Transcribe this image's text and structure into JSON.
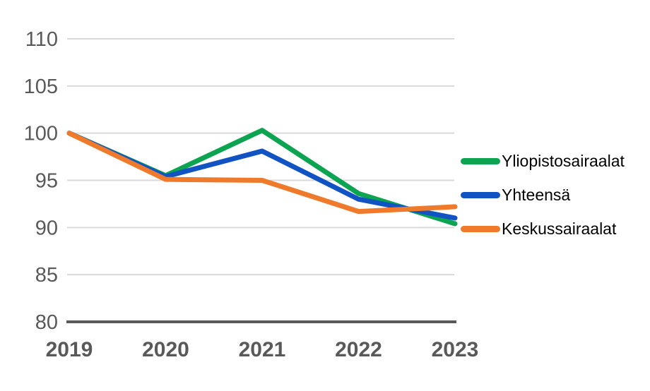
{
  "chart_data": {
    "type": "line",
    "x": [
      "2019",
      "2020",
      "2021",
      "2022",
      "2023"
    ],
    "series": [
      {
        "name": "Yliopistosairaalat",
        "color": "#0ca351",
        "values": [
          100,
          95.5,
          100.3,
          93.6,
          90.4
        ]
      },
      {
        "name": "Yhteensä",
        "color": "#1253c4",
        "values": [
          100,
          95.4,
          98.1,
          93.0,
          91.0
        ]
      },
      {
        "name": "Keskussairaalat",
        "color": "#ef7a2b",
        "values": [
          100,
          95.1,
          95.0,
          91.7,
          92.2
        ]
      }
    ],
    "title": "",
    "xlabel": "",
    "ylabel": "",
    "ylim": [
      80,
      110
    ],
    "ytick_step": 5,
    "yticks": [
      "80",
      "85",
      "90",
      "95",
      "100",
      "105",
      "110"
    ],
    "grid": true,
    "legend_position": "right"
  },
  "style": {
    "grid_color": "#d9d9d9",
    "axis_color": "#595959",
    "tick_label_color": "#595959",
    "legend_text_color": "#000000",
    "background": "#ffffff"
  }
}
